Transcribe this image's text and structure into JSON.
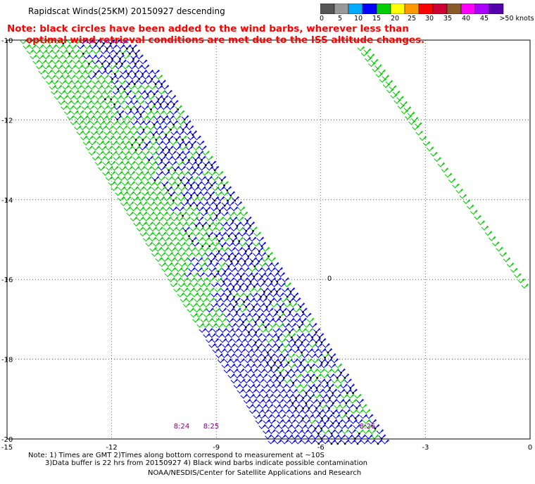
{
  "title": "Rapidscat Winds(25KM) 20150927 descending",
  "note": {
    "line1": "Note: black circles have been added to the wind barbs, wherever less than",
    "line2": "optimal wind retrieval conditions are met due to the ISS altitude changes."
  },
  "colorbar": {
    "colors": [
      "#555555",
      "#999999",
      "#00aaff",
      "#0000ff",
      "#00cc00",
      "#ffff00",
      "#ff9900",
      "#ff0000",
      "#cc0033",
      "#8b5a2b",
      "#ff00ff",
      "#aa00ff",
      "#5500aa"
    ],
    "labels": [
      "0",
      "5",
      "10",
      "15",
      "20",
      "25",
      "30",
      "35",
      "40",
      "45",
      ">50 knots"
    ]
  },
  "axes": {
    "x_ticks": [
      "-15",
      "-12",
      "-9",
      "-6",
      "-3",
      "0"
    ],
    "y_ticks": [
      "-10",
      "-12",
      "-14",
      "-16",
      "-18",
      "-20"
    ]
  },
  "time_labels": [
    "8:24",
    "8:25",
    "8:26"
  ],
  "marker_label": "0",
  "footer": {
    "line1": "Note: 1) Times are GMT 2)Times along bottom correspond to measurement at ~10S",
    "line2": "3)Data buffer is 22 hrs from 20150927 4) Black wind barbs indicate possible contamination",
    "line3": "NOAA/NESDIS/Center for Satellite Applications and Research"
  }
}
